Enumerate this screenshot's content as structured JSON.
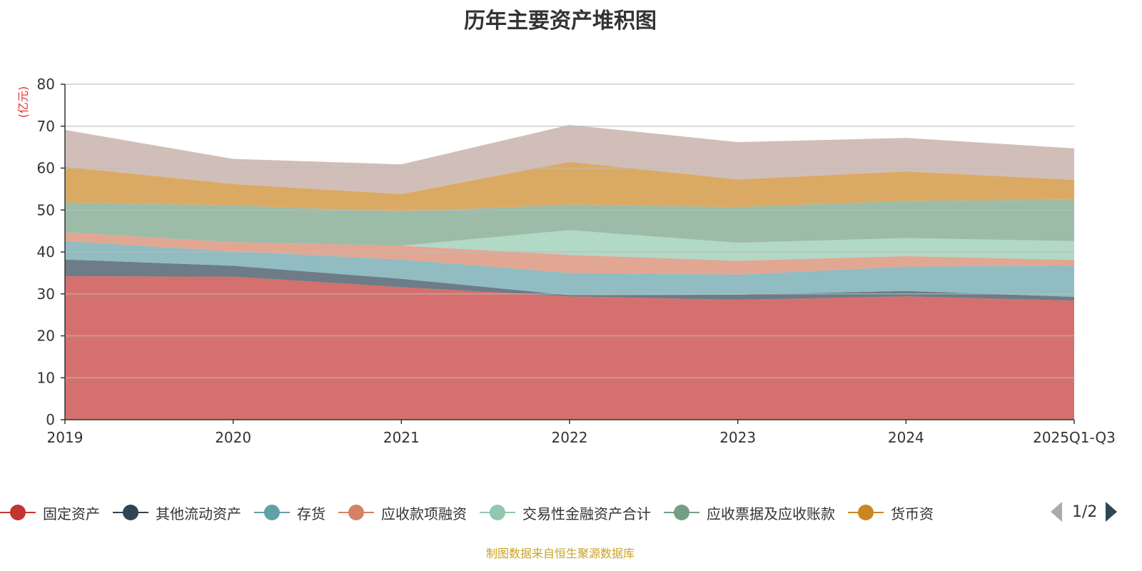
{
  "chart_data": {
    "type": "area",
    "stacked": true,
    "title": "历年主要资产堆积图",
    "ylabel": "(亿元)",
    "xlabel": "",
    "ylim": [
      0,
      80
    ],
    "yticks": [
      "0",
      "10",
      "20",
      "30",
      "40",
      "50",
      "60",
      "70",
      "80"
    ],
    "categories": [
      "2019",
      "2020",
      "2021",
      "2022",
      "2023",
      "2024",
      "2025Q1-Q3"
    ],
    "grid": true,
    "legend_placement": "bottom",
    "series": [
      {
        "name": "固定资产",
        "color": "#c23531",
        "values": [
          34.2,
          34.1,
          31.6,
          29.4,
          28.6,
          29.4,
          28.4
        ]
      },
      {
        "name": "其他流动资产",
        "color": "#2f4554",
        "values": [
          4.0,
          2.6,
          2.0,
          0.3,
          1.2,
          1.3,
          0.9
        ]
      },
      {
        "name": "存货",
        "color": "#61a0a8",
        "values": [
          4.4,
          3.4,
          4.6,
          5.3,
          4.8,
          5.8,
          7.4
        ]
      },
      {
        "name": "应收款项融资",
        "color": "#d48265",
        "values": [
          2.1,
          2.2,
          3.3,
          4.3,
          3.3,
          2.5,
          1.4
        ]
      },
      {
        "name": "交易性金融资产合计",
        "color": "#91c7ae",
        "values": [
          0,
          0,
          0,
          5.9,
          4.3,
          4.3,
          4.5
        ]
      },
      {
        "name": "应收票据及应收账款",
        "color": "#749f83",
        "values": [
          7.1,
          8.8,
          8.1,
          6.1,
          8.5,
          8.9,
          9.9
        ]
      },
      {
        "name": "货币资",
        "color": "#ca8622",
        "values": [
          8.5,
          5.1,
          4.2,
          10.2,
          6.6,
          7.0,
          4.7
        ]
      },
      {
        "color": "#bda29a",
        "values": [
          8.8,
          6.0,
          7.1,
          8.8,
          8.9,
          8.0,
          7.5
        ]
      }
    ]
  },
  "legend": {
    "page": "1/2"
  },
  "footer": "制图数据来自恒生聚源数据库"
}
